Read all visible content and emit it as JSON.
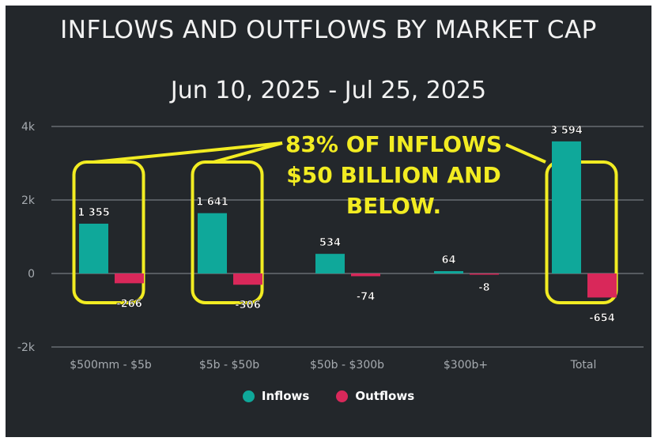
{
  "title": "INFLOWS AND OUTFLOWS BY MARKET CAP",
  "subtitle": "Jun 10, 2025 - Jul 25, 2025",
  "annotation": {
    "lines": [
      "83% OF INFLOWS",
      "$50 BILLION AND",
      "BELOW."
    ],
    "color": "#f2ec22",
    "highlighted_categories": [
      "$500mm - $5b",
      "$5b - $50b",
      "Total"
    ]
  },
  "legend": [
    {
      "label": "Inflows",
      "color": "#0fa89a"
    },
    {
      "label": "Outflows",
      "color": "#d9285a"
    }
  ],
  "colors": {
    "background": "#23272b",
    "grid": "#8a8f94",
    "text": "#ffffff",
    "axis_text": "#a6abb0"
  },
  "chart_data": {
    "type": "bar",
    "title": "INFLOWS AND OUTFLOWS BY MARKET CAP",
    "subtitle": "Jun 10, 2025 - Jul 25, 2025",
    "categories": [
      "$500mm - $5b",
      "$5b - $50b",
      "$50b - $300b",
      "$300b+",
      "Total"
    ],
    "series": [
      {
        "name": "Inflows",
        "values": [
          1355,
          1641,
          534,
          64,
          3594
        ],
        "labels": [
          "1 355",
          "1 641",
          "534",
          "64",
          "3 594"
        ],
        "color": "#0fa89a"
      },
      {
        "name": "Outflows",
        "values": [
          -266,
          -306,
          -74,
          -8,
          -654
        ],
        "labels": [
          "-266",
          "-306",
          "-74",
          "-8",
          "-654"
        ],
        "color": "#d9285a"
      }
    ],
    "ylim": [
      -2000,
      4000
    ],
    "yticks": [
      {
        "value": 4000,
        "label": "4k"
      },
      {
        "value": 2000,
        "label": "2k"
      },
      {
        "value": 0,
        "label": "0"
      },
      {
        "value": -2000,
        "label": "-2k"
      }
    ],
    "xlabel": "",
    "ylabel": "",
    "grid": true,
    "legend_position": "bottom"
  }
}
